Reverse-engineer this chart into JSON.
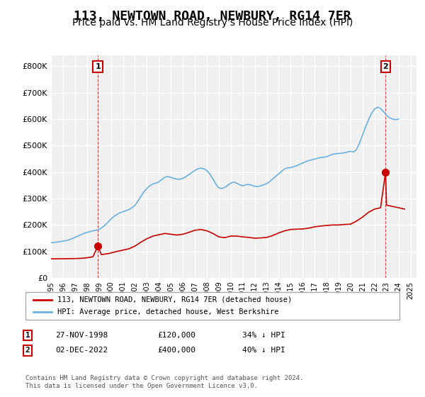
{
  "title": "113, NEWTOWN ROAD, NEWBURY, RG14 7ER",
  "subtitle": "Price paid vs. HM Land Registry's House Price Index (HPI)",
  "title_fontsize": 13,
  "subtitle_fontsize": 10,
  "ylabel_ticks": [
    "£0",
    "£100K",
    "£200K",
    "£300K",
    "£400K",
    "£500K",
    "£600K",
    "£700K",
    "£800K"
  ],
  "ytick_vals": [
    0,
    100000,
    200000,
    300000,
    400000,
    500000,
    600000,
    700000,
    800000
  ],
  "ylim": [
    0,
    840000
  ],
  "xlim_start": 1995.0,
  "xlim_end": 2025.5,
  "background_color": "#ffffff",
  "plot_bg_color": "#f0f0f0",
  "grid_color": "#ffffff",
  "hpi_color": "#6ab0e0",
  "price_color": "#cc0000",
  "annotation_color": "#cc0000",
  "marker1_x": 1998.91,
  "marker1_y": 120000,
  "marker1_label": "1",
  "marker2_x": 2022.92,
  "marker2_y": 400000,
  "marker2_label": "2",
  "legend_label_price": "113, NEWTOWN ROAD, NEWBURY, RG14 7ER (detached house)",
  "legend_label_hpi": "HPI: Average price, detached house, West Berkshire",
  "table_row1": [
    "1",
    "27-NOV-1998",
    "£120,000",
    "34% ↓ HPI"
  ],
  "table_row2": [
    "2",
    "02-DEC-2022",
    "£400,000",
    "40% ↓ HPI"
  ],
  "footnote": "Contains HM Land Registry data © Crown copyright and database right 2024.\nThis data is licensed under the Open Government Licence v3.0.",
  "hpi_data_x": [
    1995.0,
    1995.25,
    1995.5,
    1995.75,
    1996.0,
    1996.25,
    1996.5,
    1996.75,
    1997.0,
    1997.25,
    1997.5,
    1997.75,
    1998.0,
    1998.25,
    1998.5,
    1998.75,
    1999.0,
    1999.25,
    1999.5,
    1999.75,
    2000.0,
    2000.25,
    2000.5,
    2000.75,
    2001.0,
    2001.25,
    2001.5,
    2001.75,
    2002.0,
    2002.25,
    2002.5,
    2002.75,
    2003.0,
    2003.25,
    2003.5,
    2003.75,
    2004.0,
    2004.25,
    2004.5,
    2004.75,
    2005.0,
    2005.25,
    2005.5,
    2005.75,
    2006.0,
    2006.25,
    2006.5,
    2006.75,
    2007.0,
    2007.25,
    2007.5,
    2007.75,
    2008.0,
    2008.25,
    2008.5,
    2008.75,
    2009.0,
    2009.25,
    2009.5,
    2009.75,
    2010.0,
    2010.25,
    2010.5,
    2010.75,
    2011.0,
    2011.25,
    2011.5,
    2011.75,
    2012.0,
    2012.25,
    2012.5,
    2012.75,
    2013.0,
    2013.25,
    2013.5,
    2013.75,
    2014.0,
    2014.25,
    2014.5,
    2014.75,
    2015.0,
    2015.25,
    2015.5,
    2015.75,
    2016.0,
    2016.25,
    2016.5,
    2016.75,
    2017.0,
    2017.25,
    2017.5,
    2017.75,
    2018.0,
    2018.25,
    2018.5,
    2018.75,
    2019.0,
    2019.25,
    2019.5,
    2019.75,
    2020.0,
    2020.25,
    2020.5,
    2020.75,
    2021.0,
    2021.25,
    2021.5,
    2021.75,
    2022.0,
    2022.25,
    2022.5,
    2022.75,
    2023.0,
    2023.25,
    2023.5,
    2023.75,
    2024.0
  ],
  "hpi_data_y": [
    133000,
    134000,
    135500,
    137000,
    139000,
    141000,
    144000,
    148000,
    153000,
    158000,
    163000,
    168000,
    172000,
    175000,
    178000,
    180000,
    183000,
    190000,
    199000,
    210000,
    222000,
    232000,
    240000,
    246000,
    250000,
    254000,
    258000,
    265000,
    274000,
    290000,
    308000,
    325000,
    338000,
    348000,
    355000,
    358000,
    363000,
    372000,
    380000,
    383000,
    380000,
    376000,
    373000,
    373000,
    376000,
    382000,
    390000,
    398000,
    406000,
    412000,
    415000,
    412000,
    406000,
    393000,
    375000,
    355000,
    340000,
    338000,
    342000,
    350000,
    358000,
    362000,
    358000,
    352000,
    348000,
    352000,
    353000,
    350000,
    346000,
    345000,
    348000,
    352000,
    356000,
    364000,
    374000,
    384000,
    393000,
    403000,
    412000,
    416000,
    417000,
    420000,
    424000,
    429000,
    434000,
    439000,
    443000,
    446000,
    449000,
    452000,
    455000,
    456000,
    458000,
    463000,
    467000,
    469000,
    470000,
    471000,
    473000,
    476000,
    478000,
    476000,
    485000,
    510000,
    540000,
    570000,
    598000,
    622000,
    638000,
    645000,
    640000,
    628000,
    615000,
    605000,
    600000,
    598000,
    600000
  ],
  "price_line_x": [
    1995.0,
    1996.0,
    1997.0,
    1997.5,
    1998.0,
    1998.5,
    1998.91,
    1999.2,
    1999.8,
    2000.5,
    2001.0,
    2001.5,
    2002.0,
    2002.5,
    2003.0,
    2003.5,
    2004.0,
    2004.5,
    2005.0,
    2005.5,
    2006.0,
    2006.5,
    2007.0,
    2007.5,
    2008.0,
    2008.5,
    2009.0,
    2009.5,
    2010.0,
    2010.5,
    2011.0,
    2011.5,
    2012.0,
    2012.5,
    2013.0,
    2013.5,
    2014.0,
    2014.5,
    2015.0,
    2015.5,
    2016.0,
    2016.5,
    2017.0,
    2017.5,
    2018.0,
    2018.5,
    2019.0,
    2019.5,
    2020.0,
    2020.5,
    2021.0,
    2021.5,
    2022.0,
    2022.5,
    2022.92,
    2023.0,
    2023.5,
    2024.0,
    2024.5
  ],
  "price_line_y": [
    72000,
    72500,
    73000,
    74000,
    76000,
    80000,
    120000,
    88000,
    92000,
    100000,
    105000,
    110000,
    120000,
    135000,
    148000,
    158000,
    163000,
    168000,
    165000,
    162000,
    165000,
    172000,
    180000,
    183000,
    178000,
    168000,
    155000,
    152000,
    158000,
    158000,
    155000,
    153000,
    150000,
    151000,
    153000,
    160000,
    170000,
    178000,
    183000,
    184000,
    185000,
    188000,
    193000,
    196000,
    198000,
    200000,
    200000,
    202000,
    203000,
    215000,
    230000,
    248000,
    260000,
    265000,
    400000,
    275000,
    270000,
    265000,
    260000
  ]
}
